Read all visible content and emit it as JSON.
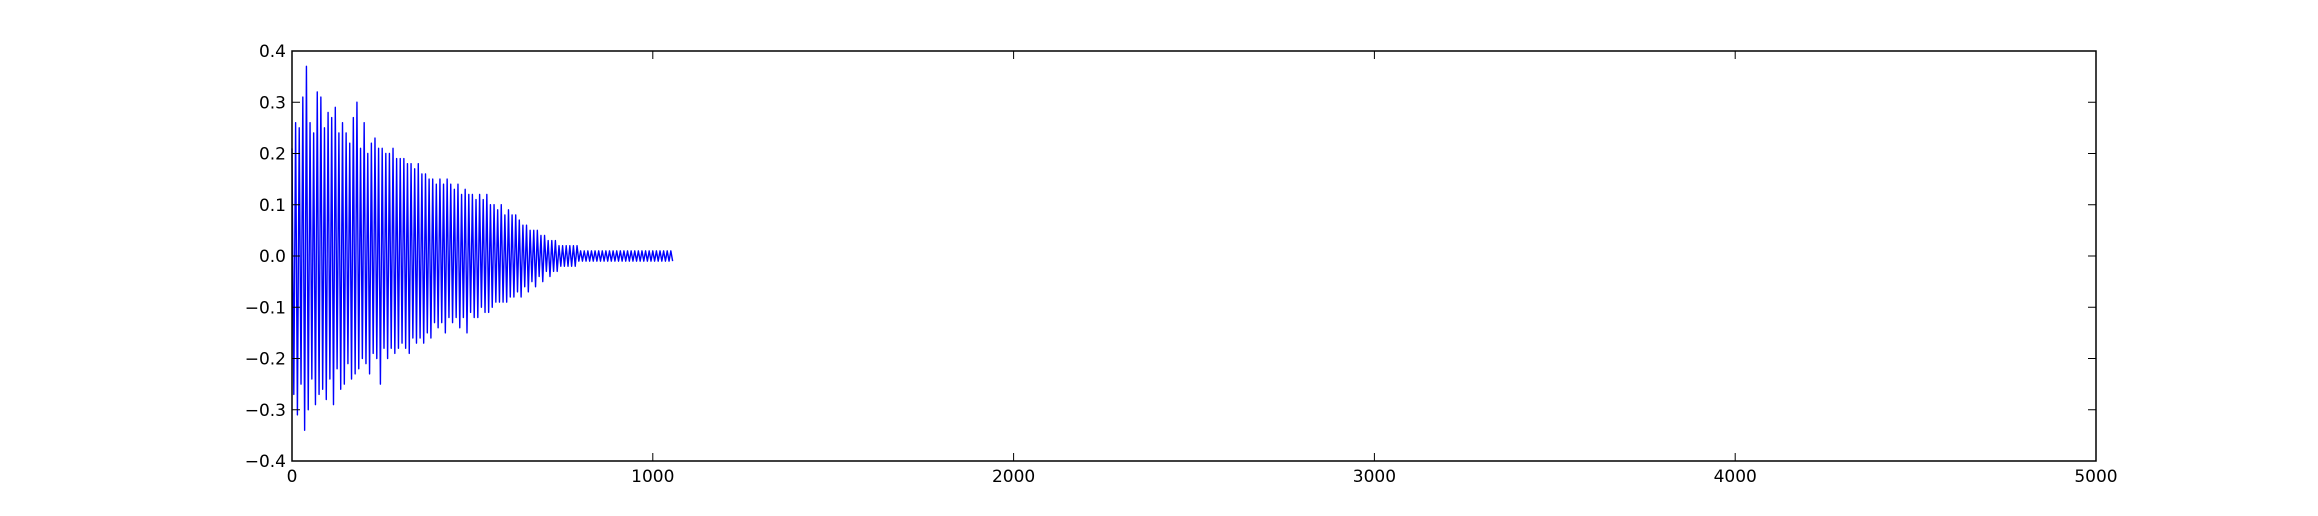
{
  "chart_data": {
    "type": "line",
    "title": "",
    "xlabel": "",
    "ylabel": "",
    "xlim": [
      0,
      5000
    ],
    "ylim": [
      -0.4,
      0.4
    ],
    "x_ticks": [
      0,
      1000,
      2000,
      3000,
      4000,
      5000
    ],
    "x_tick_labels": [
      "0",
      "1000",
      "2000",
      "3000",
      "4000",
      "5000"
    ],
    "y_ticks": [
      0.4,
      0.3,
      0.2,
      0.1,
      0.0,
      -0.1,
      -0.2,
      -0.3,
      -0.4
    ],
    "y_tick_labels": [
      "0.4",
      "0.3",
      "0.2",
      "0.1",
      "0.0",
      "−0.1",
      "−0.2",
      "−0.3",
      "−0.4"
    ],
    "grid": false,
    "legend": "none",
    "series": [
      {
        "color": "#0000ff",
        "x_start": 0,
        "x_step": 5,
        "values": [
          0.21,
          -0.27,
          0.26,
          -0.31,
          0.25,
          -0.25,
          0.31,
          -0.34,
          0.37,
          -0.3,
          0.26,
          -0.24,
          0.24,
          -0.29,
          0.32,
          -0.27,
          0.31,
          -0.26,
          0.25,
          -0.28,
          0.28,
          -0.24,
          0.27,
          -0.29,
          0.29,
          -0.22,
          0.24,
          -0.26,
          0.26,
          -0.25,
          0.24,
          -0.21,
          0.22,
          -0.24,
          0.27,
          -0.23,
          0.3,
          -0.22,
          0.21,
          -0.2,
          0.26,
          -0.21,
          0.2,
          -0.23,
          0.22,
          -0.19,
          0.23,
          -0.2,
          0.21,
          -0.25,
          0.21,
          -0.18,
          0.2,
          -0.2,
          0.2,
          -0.18,
          0.21,
          -0.19,
          0.19,
          -0.18,
          0.19,
          -0.17,
          0.19,
          -0.18,
          0.18,
          -0.19,
          0.18,
          -0.16,
          0.17,
          -0.17,
          0.18,
          -0.16,
          0.16,
          -0.17,
          0.16,
          -0.15,
          0.15,
          -0.16,
          0.15,
          -0.13,
          0.14,
          -0.14,
          0.15,
          -0.13,
          0.14,
          -0.15,
          0.15,
          -0.12,
          0.14,
          -0.13,
          0.13,
          -0.12,
          0.14,
          -0.14,
          0.12,
          -0.12,
          0.13,
          -0.15,
          0.12,
          -0.11,
          0.12,
          -0.12,
          0.11,
          -0.12,
          0.12,
          -0.1,
          0.11,
          -0.11,
          0.12,
          -0.11,
          0.1,
          -0.1,
          0.1,
          -0.09,
          0.09,
          -0.09,
          0.1,
          -0.09,
          0.08,
          -0.09,
          0.09,
          -0.08,
          0.08,
          -0.08,
          0.08,
          -0.07,
          0.07,
          -0.08,
          0.06,
          -0.06,
          0.06,
          -0.07,
          0.05,
          -0.05,
          0.05,
          -0.06,
          0.05,
          -0.04,
          0.04,
          -0.05,
          0.04,
          -0.03,
          0.03,
          -0.04,
          0.03,
          -0.03,
          0.03,
          -0.03,
          0.02,
          -0.02,
          0.02,
          -0.02,
          0.02,
          -0.02,
          0.02,
          -0.02,
          0.02,
          -0.02,
          0.02,
          -0.01,
          0.01,
          -0.01,
          0.01,
          -0.01,
          0.01,
          -0.01,
          0.01,
          -0.01,
          0.01,
          -0.01,
          0.01,
          -0.01,
          0.01,
          -0.01,
          0.01,
          -0.01,
          0.01,
          -0.01,
          0.01,
          -0.01,
          0.01,
          -0.01,
          0.01,
          -0.01,
          0.01,
          -0.01,
          0.01,
          -0.01,
          0.01,
          -0.01,
          0.01,
          -0.01,
          0.01,
          -0.01,
          0.01,
          -0.01,
          0.01,
          -0.01,
          0.01,
          -0.01,
          0.01,
          -0.01,
          0.01,
          -0.01,
          0.01,
          -0.01,
          0.01,
          -0.01,
          0.01,
          -0.01,
          0.01,
          -0.01
        ]
      }
    ]
  }
}
